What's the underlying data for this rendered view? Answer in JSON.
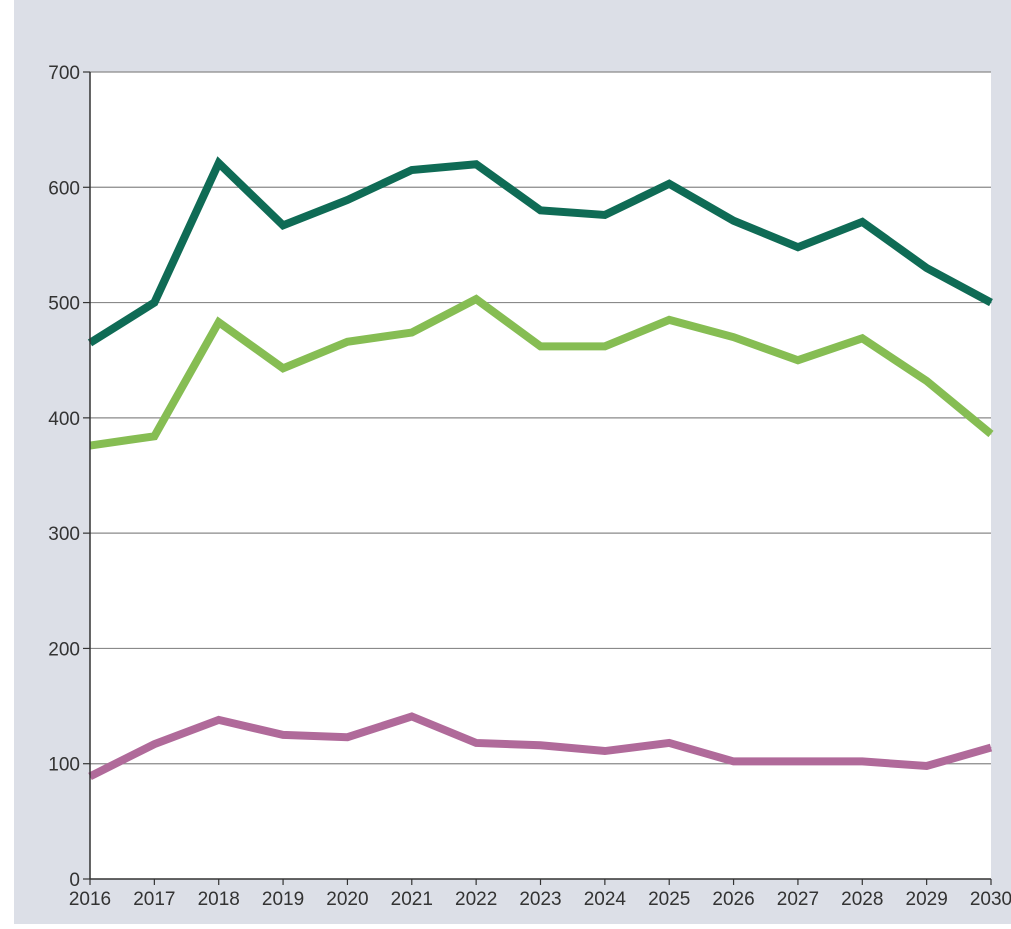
{
  "chart_data": {
    "type": "line",
    "title": "",
    "xlabel": "",
    "ylabel": "",
    "x": [
      2016,
      2017,
      2018,
      2019,
      2020,
      2021,
      2022,
      2023,
      2024,
      2025,
      2026,
      2027,
      2028,
      2029,
      2030
    ],
    "x_tick_labels": [
      "2016",
      "2017",
      "2018",
      "2019",
      "2020",
      "2021",
      "2022",
      "2023",
      "2024",
      "2025",
      "2026",
      "2027",
      "2028",
      "2029",
      "2030"
    ],
    "ylim": [
      0,
      700
    ],
    "y_ticks": [
      0,
      100,
      200,
      300,
      400,
      500,
      600,
      700
    ],
    "y_tick_labels": [
      "0",
      "100",
      "200",
      "300",
      "400",
      "500",
      "600",
      "700"
    ],
    "grid": "horizontal",
    "background_color": "#dcdfe7",
    "plot_background_color": "#ffffff",
    "series": [
      {
        "color": "#0f6b55",
        "values": [
          465,
          500,
          621,
          567,
          589,
          615,
          620,
          580,
          576,
          603,
          571,
          548,
          570,
          530,
          500
        ]
      },
      {
        "color": "#86bd53",
        "values": [
          376,
          384,
          483,
          443,
          466,
          474,
          503,
          462,
          462,
          485,
          470,
          450,
          469,
          432,
          386
        ]
      },
      {
        "color": "#b06a9a",
        "values": [
          89,
          117,
          138,
          125,
          123,
          141,
          118,
          116,
          111,
          118,
          102,
          102,
          102,
          98,
          114
        ]
      }
    ]
  }
}
